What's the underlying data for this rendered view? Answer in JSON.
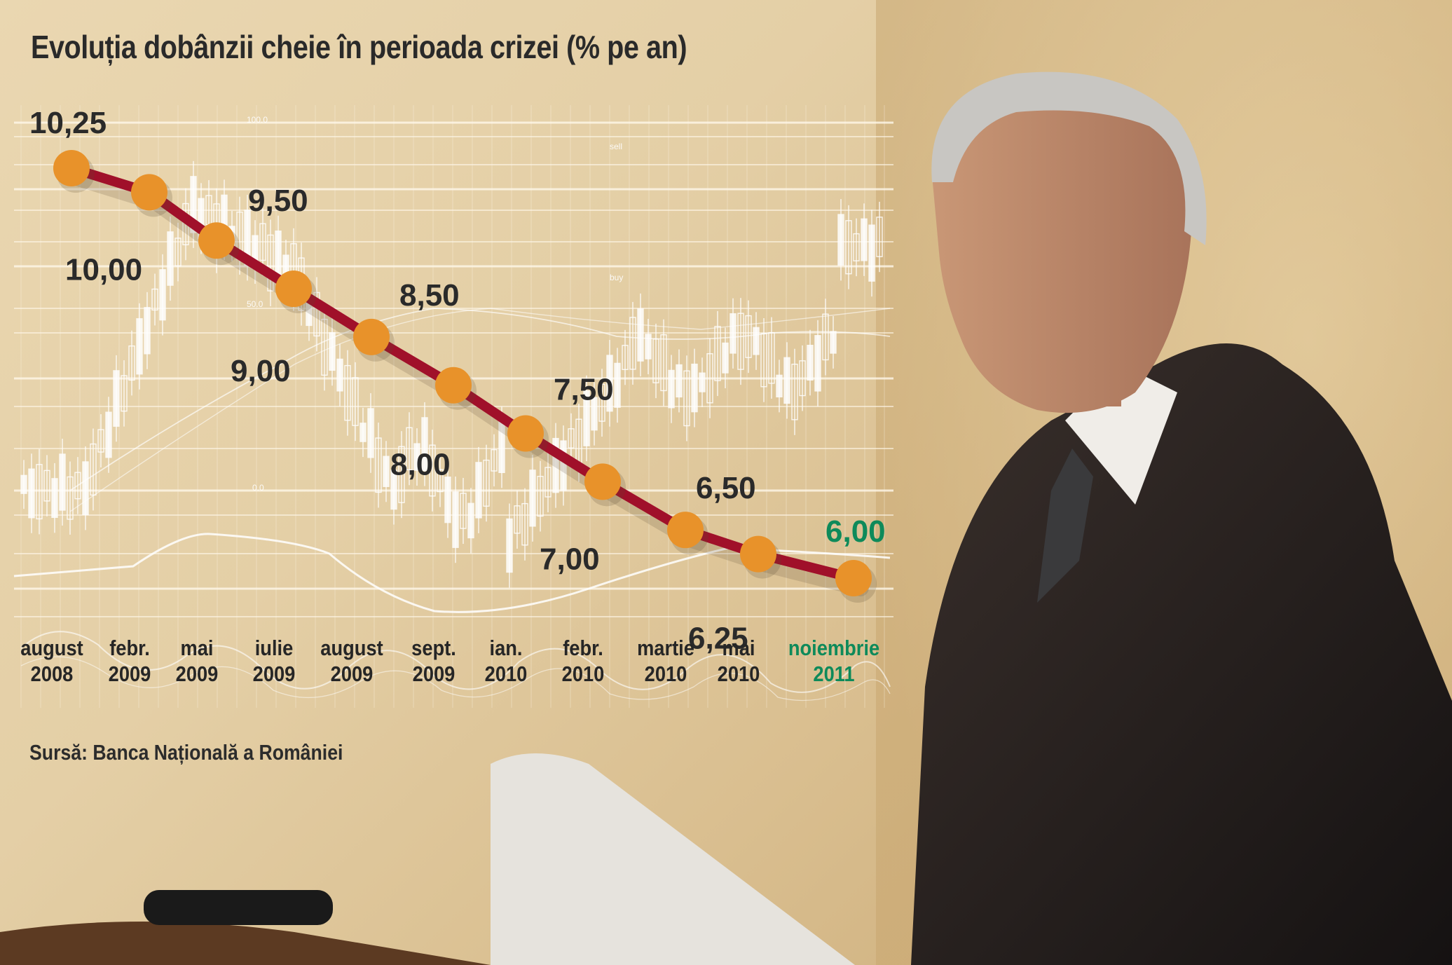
{
  "title": "Evoluția dobânzii cheie în perioada crizei (% pe an)",
  "source": "Sursă: Banca Națională a României",
  "colors": {
    "line": "#a0102a",
    "marker": "#e8922a",
    "highlight": "#0e8a5a",
    "text": "#2a2a2a"
  },
  "background_labels": [
    "100.0",
    "sell",
    "buy",
    "50.0",
    "0.0"
  ],
  "chart_data": {
    "type": "line",
    "title": "Evoluția dobânzii cheie în perioada crizei (% pe an)",
    "xlabel": "",
    "ylabel": "",
    "ylim": [
      6.0,
      10.25
    ],
    "grid": true,
    "x_axis_categories": [
      {
        "month": "august",
        "year": "2008",
        "highlight": false
      },
      {
        "month": "febr.",
        "year": "2009",
        "highlight": false
      },
      {
        "month": "mai",
        "year": "2009",
        "highlight": false
      },
      {
        "month": "iulie",
        "year": "2009",
        "highlight": false
      },
      {
        "month": "august",
        "year": "2009",
        "highlight": false
      },
      {
        "month": "sept.",
        "year": "2009",
        "highlight": false
      },
      {
        "month": "ian.",
        "year": "2010",
        "highlight": false
      },
      {
        "month": "febr.",
        "year": "2010",
        "highlight": false
      },
      {
        "month": "martie",
        "year": "2010",
        "highlight": false
      },
      {
        "month": "mai",
        "year": "2010",
        "highlight": false
      },
      {
        "month": "noiembrie",
        "year": "2011",
        "highlight": true
      }
    ],
    "points": [
      {
        "value": 10.25,
        "label": "10,25",
        "highlight": false
      },
      {
        "value": 10.0,
        "label": "10,00",
        "highlight": false
      },
      {
        "value": 9.5,
        "label": "9,50",
        "highlight": false
      },
      {
        "value": 9.0,
        "label": "9,00",
        "highlight": false
      },
      {
        "value": 8.5,
        "label": "8,50",
        "highlight": false
      },
      {
        "value": 8.0,
        "label": "8,00",
        "highlight": false
      },
      {
        "value": 7.5,
        "label": "7,50",
        "highlight": false
      },
      {
        "value": 7.0,
        "label": "7,00",
        "highlight": false
      },
      {
        "value": 6.5,
        "label": "6,50",
        "highlight": false
      },
      {
        "value": 6.25,
        "label": "6,25",
        "highlight": false
      },
      {
        "value": 6.0,
        "label": "6,00",
        "highlight": true
      }
    ]
  }
}
